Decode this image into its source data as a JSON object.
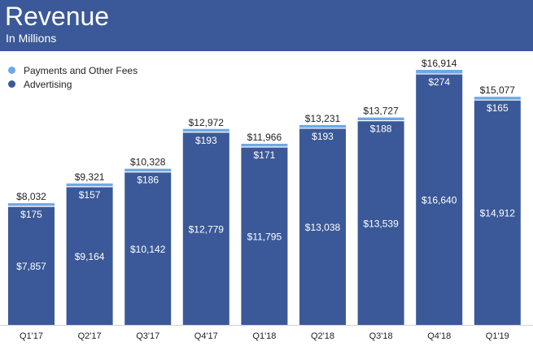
{
  "header": {
    "title": "Revenue",
    "subtitle": "In Millions"
  },
  "colors": {
    "header_bg": "#3b5998",
    "advertising": "#3b5998",
    "payments": "#6fa8e8"
  },
  "chart_data": {
    "type": "bar",
    "stacked": true,
    "title": "Revenue",
    "subtitle": "In Millions",
    "legend_position": "top-left",
    "grid": false,
    "categories": [
      "Q1'17",
      "Q2'17",
      "Q3'17",
      "Q4'17",
      "Q1'18",
      "Q2'18",
      "Q3'18",
      "Q4'18",
      "Q1'19"
    ],
    "series": [
      {
        "name": "Advertising",
        "values": [
          7857,
          9164,
          10142,
          12779,
          11795,
          13038,
          13539,
          16640,
          14912
        ],
        "labels": [
          "$7,857",
          "$9,164",
          "$10,142",
          "$12,779",
          "$11,795",
          "$13,038",
          "$13,539",
          "$16,640",
          "$14,912"
        ]
      },
      {
        "name": "Payments and Other Fees",
        "values": [
          175,
          157,
          186,
          193,
          171,
          193,
          188,
          274,
          165
        ],
        "labels": [
          "$175",
          "$157",
          "$186",
          "$193",
          "$171",
          "$193",
          "$188",
          "$274",
          "$165"
        ]
      }
    ],
    "totals": [
      8032,
      9321,
      10328,
      12972,
      11966,
      13231,
      13727,
      16914,
      15077
    ],
    "total_labels": [
      "$8,032",
      "$9,321",
      "$10,328",
      "$12,972",
      "$11,966",
      "$13,231",
      "$13,727",
      "$16,914",
      "$15,077"
    ],
    "ylim": [
      0,
      16914
    ]
  }
}
